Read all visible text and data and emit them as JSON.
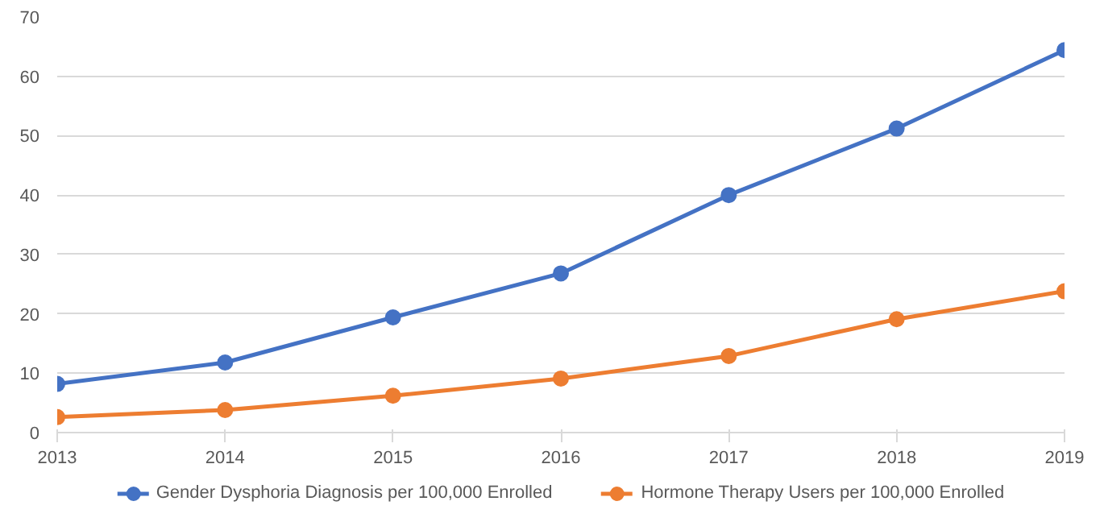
{
  "chart_data": {
    "type": "line",
    "x": [
      2013,
      2014,
      2015,
      2016,
      2017,
      2018,
      2019
    ],
    "series": [
      {
        "name": "Gender Dysphoria Diagnosis per 100,000 Enrolled",
        "color": "#4472c4",
        "values": [
          8.2,
          11.8,
          19.4,
          26.8,
          40,
          51.2,
          64.4
        ]
      },
      {
        "name": "Hormone Therapy Users per 100,000 Enrolled",
        "color": "#ed7d31",
        "values": [
          2.6,
          3.8,
          6.2,
          9.1,
          12.9,
          19.1,
          23.8
        ]
      }
    ],
    "xlim": [
      2013,
      2019
    ],
    "xticks": [
      2013,
      2014,
      2015,
      2016,
      2017,
      2018,
      2019
    ],
    "ylim": [
      0,
      70
    ],
    "yticks": [
      0,
      10,
      20,
      30,
      40,
      50,
      60,
      70
    ],
    "grid": "y",
    "legend": "bottom",
    "marker": "circle",
    "line_style": "solid"
  }
}
